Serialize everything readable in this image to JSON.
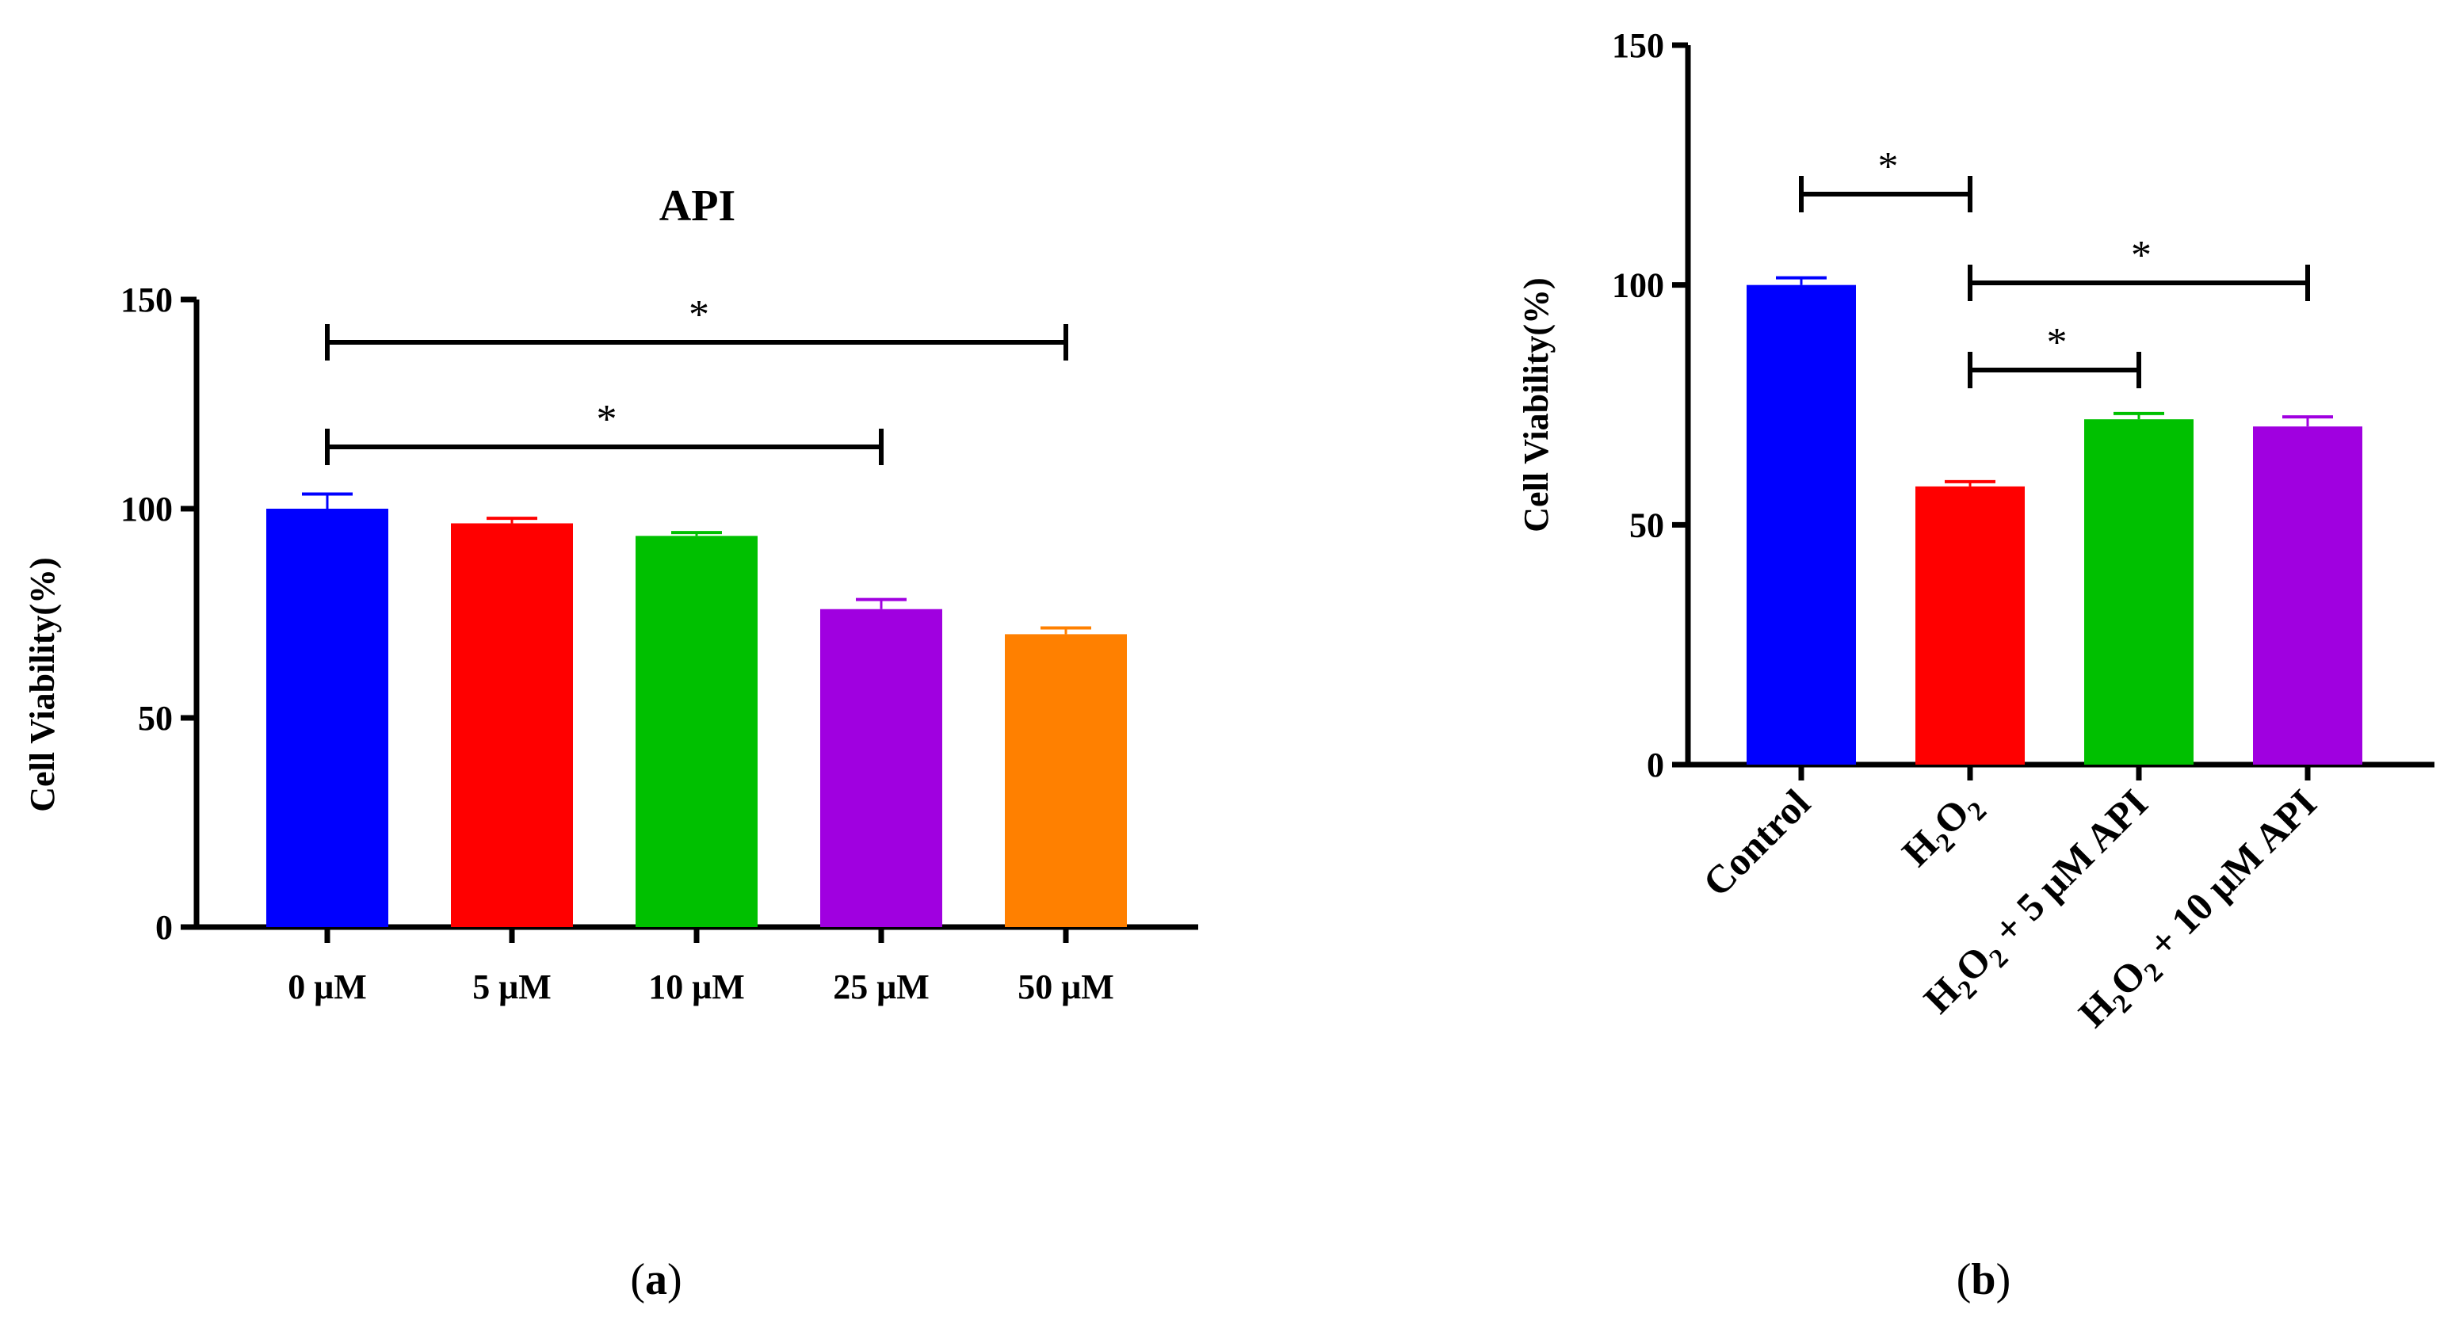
{
  "chart_data": [
    {
      "panel": "a",
      "type": "bar",
      "title": "API",
      "ylabel": "Cell Viability(%)",
      "xlabel": "",
      "ylim": [
        0,
        150
      ],
      "yticks": [
        "0",
        "50",
        "100",
        "150"
      ],
      "categories": [
        "0 μM",
        "5 μM",
        "10 μM",
        "25 μM",
        "50 μM"
      ],
      "values": [
        100,
        96.5,
        93.5,
        76,
        70
      ],
      "errors": [
        3.5,
        1.2,
        0.8,
        2.3,
        1.5
      ],
      "colors": [
        "#0000ff",
        "#ff0000",
        "#00c000",
        "#a000e0",
        "#ff8000"
      ],
      "significance": [
        {
          "from": 0,
          "to": 4,
          "label": "*"
        },
        {
          "from": 0,
          "to": 3,
          "label": "*"
        }
      ]
    },
    {
      "panel": "b",
      "type": "bar",
      "title": "",
      "ylabel": "Cell Viability(%)",
      "xlabel": "",
      "ylim": [
        0,
        150
      ],
      "yticks": [
        "0",
        "50",
        "100",
        "150"
      ],
      "categories": [
        {
          "parts": [
            "Control"
          ]
        },
        {
          "parts": [
            "H",
            "2",
            "O",
            "2"
          ]
        },
        {
          "parts": [
            "H",
            "2",
            "O",
            "2",
            " + 5 μM API"
          ]
        },
        {
          "parts": [
            "H",
            "2",
            "O",
            "2",
            " + 10 μM API"
          ]
        }
      ],
      "values": [
        100,
        58,
        72,
        70.5
      ],
      "errors": [
        1.5,
        1.0,
        1.2,
        2.0
      ],
      "colors": [
        "#0000ff",
        "#ff0000",
        "#00c000",
        "#a000e0"
      ],
      "significance": [
        {
          "from": 0,
          "to": 1,
          "label": "*"
        },
        {
          "from": 1,
          "to": 3,
          "label": "*"
        },
        {
          "from": 1,
          "to": 2,
          "label": "*"
        }
      ]
    }
  ],
  "panel_labels": {
    "a": {
      "open": "(",
      "letter": "a",
      "close": ")"
    },
    "b": {
      "open": "(",
      "letter": "b",
      "close": ")"
    }
  }
}
